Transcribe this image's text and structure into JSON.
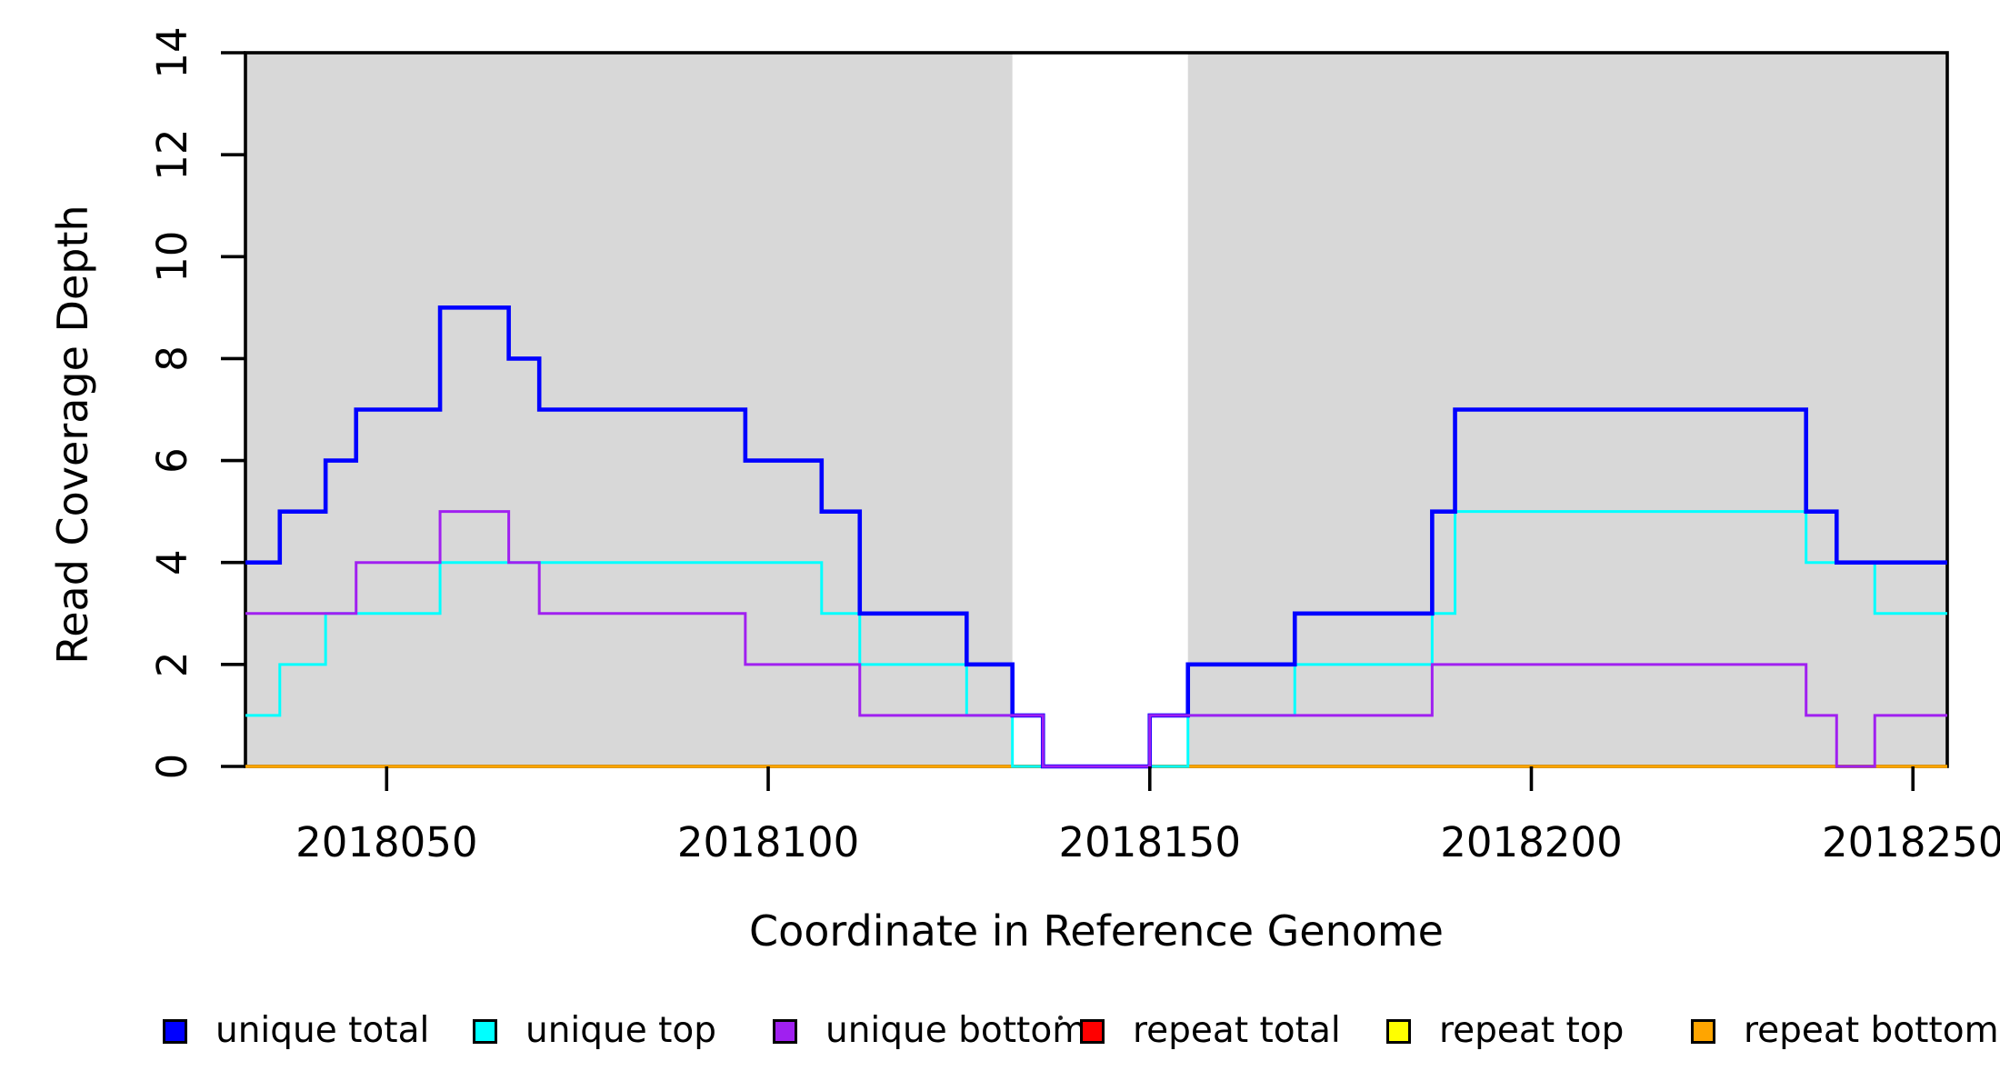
{
  "chart_data": {
    "type": "line",
    "line_style": "step-after",
    "title": "",
    "xlabel": "Coordinate in Reference Genome",
    "ylabel": "Read Coverage Depth",
    "xlim": [
      2018031.5,
      2018254.5
    ],
    "ylim": [
      0,
      14
    ],
    "xticks": [
      2018050,
      2018100,
      2018150,
      2018200,
      2018250
    ],
    "yticks": [
      0,
      2,
      4,
      6,
      8,
      10,
      12,
      14
    ],
    "grid": false,
    "legend_position": "bottom",
    "axis_color": "#000000",
    "plot_background": "#ffffff",
    "shaded_band_color": "#d8d8d8",
    "shaded_regions": [
      {
        "x0": 2018031.5,
        "x1": 2018132,
        "color": "#d8d8d8"
      },
      {
        "x0": 2018155,
        "x1": 2018254.5,
        "color": "#d8d8d8"
      }
    ],
    "draw_order": [
      "repeat total",
      "repeat top",
      "repeat bottom",
      "unique top",
      "unique total",
      "unique bottom"
    ],
    "series": [
      {
        "name": "unique total",
        "color": "#0000ff",
        "line_width": 4.6,
        "points": [
          [
            2018031.5,
            4
          ],
          [
            2018036,
            5
          ],
          [
            2018042,
            6
          ],
          [
            2018046,
            7
          ],
          [
            2018057,
            9
          ],
          [
            2018066,
            8
          ],
          [
            2018070,
            7
          ],
          [
            2018097,
            6
          ],
          [
            2018107,
            5
          ],
          [
            2018112,
            3
          ],
          [
            2018126,
            2
          ],
          [
            2018132,
            1
          ],
          [
            2018136,
            0
          ],
          [
            2018150,
            1
          ],
          [
            2018155,
            2
          ],
          [
            2018169,
            3
          ],
          [
            2018187,
            5
          ],
          [
            2018190,
            7
          ],
          [
            2018236,
            5
          ],
          [
            2018240,
            4
          ]
        ]
      },
      {
        "name": "unique top",
        "color": "#00ffff",
        "line_width": 3,
        "points": [
          [
            2018031.5,
            1
          ],
          [
            2018036,
            2
          ],
          [
            2018042,
            3
          ],
          [
            2018057,
            4
          ],
          [
            2018107,
            3
          ],
          [
            2018112,
            2
          ],
          [
            2018126,
            1
          ],
          [
            2018132,
            0
          ],
          [
            2018155,
            1
          ],
          [
            2018169,
            2
          ],
          [
            2018187,
            3
          ],
          [
            2018190,
            5
          ],
          [
            2018236,
            4
          ],
          [
            2018245,
            3
          ]
        ]
      },
      {
        "name": "unique bottom",
        "color": "#a020f0",
        "line_width": 3,
        "points": [
          [
            2018031.5,
            3
          ],
          [
            2018046,
            4
          ],
          [
            2018057,
            5
          ],
          [
            2018066,
            4
          ],
          [
            2018070,
            3
          ],
          [
            2018097,
            2
          ],
          [
            2018112,
            1
          ],
          [
            2018136,
            0
          ],
          [
            2018150,
            1
          ],
          [
            2018187,
            2
          ],
          [
            2018236,
            1
          ],
          [
            2018240,
            0
          ],
          [
            2018245,
            1
          ]
        ]
      },
      {
        "name": "repeat total",
        "color": "#ff0000",
        "line_width": 3,
        "points": [
          [
            2018031.5,
            0
          ]
        ]
      },
      {
        "name": "repeat top",
        "color": "#ffff00",
        "line_width": 3,
        "points": [
          [
            2018031.5,
            0
          ]
        ]
      },
      {
        "name": "repeat bottom",
        "color": "#ffa500",
        "line_width": 3.4,
        "points": [
          [
            2018031.5,
            0
          ]
        ]
      }
    ]
  }
}
